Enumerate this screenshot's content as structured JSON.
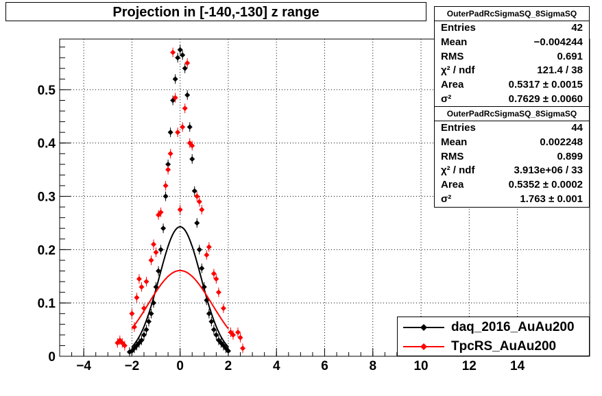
{
  "colors": {
    "daq": "#000000",
    "tpc": "#ff0000",
    "grid": "#000000"
  },
  "chart_data": {
    "type": "scatter",
    "title": "Projection in [-140,-130] z range",
    "xlim": [
      -5,
      17
    ],
    "ylim": [
      0,
      0.595
    ],
    "x_ticks": [
      -4,
      -2,
      0,
      2,
      4,
      6,
      8,
      10,
      12,
      14
    ],
    "x_tick_labels": [
      "−4",
      "−2",
      "0",
      "2",
      "4",
      "6",
      "8",
      "10",
      "12",
      "14"
    ],
    "y_ticks": [
      0,
      0.1,
      0.2,
      0.3,
      0.4,
      0.5
    ],
    "y_tick_labels": [
      "0",
      "0.1",
      "0.2",
      "0.3",
      "0.4",
      "0.5"
    ],
    "grid": true,
    "legend_position": "bottom-right",
    "series": [
      {
        "name": "daq_2016_AuAu200",
        "color": "#000000",
        "points": [
          [
            -2.0,
            0.01
          ],
          [
            -1.9,
            0.015
          ],
          [
            -1.8,
            0.02
          ],
          [
            -1.7,
            0.025
          ],
          [
            -1.6,
            0.03
          ],
          [
            -1.5,
            0.04
          ],
          [
            -1.4,
            0.05
          ],
          [
            -1.3,
            0.065
          ],
          [
            -1.2,
            0.08
          ],
          [
            -1.1,
            0.1
          ],
          [
            -1.0,
            0.13
          ],
          [
            -0.9,
            0.16
          ],
          [
            -0.8,
            0.2
          ],
          [
            -0.7,
            0.24
          ],
          [
            -0.6,
            0.3
          ],
          [
            -0.5,
            0.36
          ],
          [
            -0.4,
            0.42
          ],
          [
            -0.3,
            0.48
          ],
          [
            -0.2,
            0.52
          ],
          [
            -0.1,
            0.56
          ],
          [
            0.0,
            0.575
          ],
          [
            0.1,
            0.565
          ],
          [
            0.2,
            0.54
          ],
          [
            0.3,
            0.49
          ],
          [
            0.4,
            0.43
          ],
          [
            0.5,
            0.37
          ],
          [
            0.6,
            0.31
          ],
          [
            0.7,
            0.25
          ],
          [
            0.8,
            0.2
          ],
          [
            0.9,
            0.165
          ],
          [
            1.0,
            0.13
          ],
          [
            1.1,
            0.105
          ],
          [
            1.2,
            0.08
          ],
          [
            1.3,
            0.065
          ],
          [
            1.4,
            0.05
          ],
          [
            1.5,
            0.04
          ],
          [
            1.6,
            0.03
          ],
          [
            1.7,
            0.025
          ],
          [
            1.8,
            0.02
          ],
          [
            1.9,
            0.015
          ],
          [
            2.0,
            0.01
          ],
          [
            -2.1,
            0.008
          ]
        ],
        "fit_sigma": 0.7629,
        "fit_area": 0.5317,
        "fit_mean": 0.0,
        "fit_range": [
          -2.0,
          2.0
        ]
      },
      {
        "name": "TpcRS_AuAu200",
        "color": "#ff0000",
        "points": [
          [
            -2.6,
            0.025
          ],
          [
            -2.5,
            0.03
          ],
          [
            -2.4,
            0.025
          ],
          [
            -2.3,
            0.02
          ],
          [
            -2.0,
            0.08
          ],
          [
            -1.9,
            0.055
          ],
          [
            -1.8,
            0.11
          ],
          [
            -1.7,
            0.145
          ],
          [
            -1.6,
            0.13
          ],
          [
            -1.5,
            0.09
          ],
          [
            -1.4,
            0.14
          ],
          [
            -1.2,
            0.18
          ],
          [
            -1.1,
            0.21
          ],
          [
            -1.0,
            0.195
          ],
          [
            -0.9,
            0.265
          ],
          [
            -0.8,
            0.27
          ],
          [
            -0.6,
            0.32
          ],
          [
            -0.5,
            0.35
          ],
          [
            -0.4,
            0.38
          ],
          [
            -0.3,
            0.57
          ],
          [
            -0.2,
            0.485
          ],
          [
            -0.1,
            0.42
          ],
          [
            0.0,
            0.275
          ],
          [
            0.1,
            0.43
          ],
          [
            0.2,
            0.465
          ],
          [
            0.3,
            0.55
          ],
          [
            0.4,
            0.4
          ],
          [
            0.5,
            0.395
          ],
          [
            0.7,
            0.3
          ],
          [
            0.8,
            0.29
          ],
          [
            0.9,
            0.275
          ],
          [
            1.1,
            0.19
          ],
          [
            1.2,
            0.205
          ],
          [
            1.4,
            0.155
          ],
          [
            1.5,
            0.145
          ],
          [
            1.6,
            0.12
          ],
          [
            1.8,
            0.09
          ],
          [
            2.1,
            0.045
          ],
          [
            2.2,
            0.04
          ],
          [
            2.4,
            0.045
          ],
          [
            2.5,
            0.035
          ],
          [
            2.6,
            0.015
          ]
        ],
        "fit_sigma": 1.763,
        "fit_area": 0.5352,
        "fit_mean": 0.0,
        "fit_range": [
          -2.0,
          2.0
        ]
      }
    ]
  },
  "stats": [
    {
      "header": "OuterPadRcSigmaSQ_8SigmaSQ",
      "rows": [
        {
          "k": "Entries",
          "v": "42"
        },
        {
          "k": "Mean",
          "v": "−0.004244"
        },
        {
          "k": "RMS",
          "v": "0.691"
        },
        {
          "k": "χ² / ndf",
          "v": "121.4 / 38"
        },
        {
          "k": "Area",
          "v": "0.5317 ± 0.0015"
        },
        {
          "k": "σ²",
          "v": "0.7629 ± 0.0060"
        }
      ]
    },
    {
      "header": "OuterPadRcSigmaSQ_8SigmaSQ",
      "rows": [
        {
          "k": "Entries",
          "v": "44"
        },
        {
          "k": "Mean",
          "v": "0.002248"
        },
        {
          "k": "RMS",
          "v": "0.899"
        },
        {
          "k": "χ² / ndf",
          "v": "3.913e+06 / 33"
        },
        {
          "k": "Area",
          "v": "0.5352 ± 0.0002"
        },
        {
          "k": "σ²",
          "v": "1.763 ± 0.001"
        }
      ]
    }
  ],
  "legend": [
    "daq_2016_AuAu200",
    "TpcRS_AuAu200"
  ]
}
